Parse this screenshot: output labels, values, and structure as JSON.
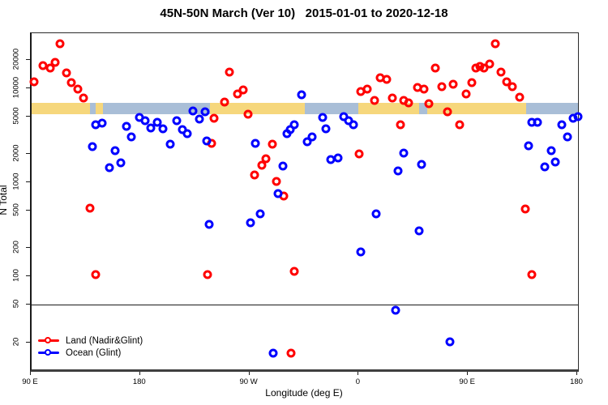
{
  "title": "45N-50N March (Ver 10)   2015-01-01 to 2020-12-18",
  "axes": {
    "x": {
      "label": "Longitude (deg E)",
      "range": [
        90,
        540
      ],
      "ticks": [
        {
          "value": 90,
          "label": "90 E"
        },
        {
          "value": 180,
          "label": "180"
        },
        {
          "value": 270,
          "label": "90 W"
        },
        {
          "value": 360,
          "label": "0"
        },
        {
          "value": 450,
          "label": "90 E"
        },
        {
          "value": 540,
          "label": "180"
        }
      ]
    },
    "y": {
      "label": "N Total",
      "scale": "log",
      "range": [
        10.35,
        38300
      ],
      "ticks": [
        20,
        50,
        100,
        200,
        500,
        1000,
        2000,
        5000,
        10000,
        20000
      ]
    }
  },
  "reference_line": {
    "y": 50
  },
  "colors": {
    "land": "#ff0000",
    "ocean": "#0000ff",
    "band_land": "#f6d77c",
    "band_ocean": "#a9bed7"
  },
  "land_ocean_band": {
    "value_range": [
      5300,
      7000
    ],
    "segments": [
      {
        "type": "land",
        "from": 90,
        "to": 138
      },
      {
        "type": "ocean",
        "from": 138,
        "to": 143
      },
      {
        "type": "land",
        "from": 143,
        "to": 149
      },
      {
        "type": "ocean",
        "from": 149,
        "to": 237
      },
      {
        "type": "land",
        "from": 237,
        "to": 315
      },
      {
        "type": "ocean",
        "from": 315,
        "to": 359
      },
      {
        "type": "land",
        "from": 359,
        "to": 409
      },
      {
        "type": "ocean",
        "from": 409,
        "to": 416
      },
      {
        "type": "land",
        "from": 416,
        "to": 497
      },
      {
        "type": "ocean",
        "from": 497,
        "to": 540
      }
    ]
  },
  "legend": {
    "items": [
      {
        "label": "Land (Nadir&Glint)",
        "color": "#ff0000"
      },
      {
        "label": "Ocean (Glint)",
        "color": "#0000ff"
      }
    ],
    "position": "bottom-left"
  },
  "chart_data": {
    "type": "scatter",
    "title": "45N-50N March (Ver 10)   2015-01-01 to 2020-12-18",
    "xlabel": "Longitude (deg E)",
    "ylabel": "N Total",
    "x_range": [
      90,
      540
    ],
    "y_range_log": [
      10.35,
      38300
    ],
    "series": [
      {
        "name": "Land (Nadir&Glint)",
        "color": "#ff0000",
        "points": [
          [
            91.8,
            11700
          ],
          [
            99.3,
            17200
          ],
          [
            105.2,
            16500
          ],
          [
            109.6,
            18900
          ],
          [
            113.4,
            29400
          ],
          [
            118.5,
            14500
          ],
          [
            122.9,
            11400
          ],
          [
            127.9,
            9700
          ],
          [
            132.7,
            7900
          ],
          [
            137.9,
            530
          ],
          [
            143.0,
            105
          ],
          [
            234.7,
            105
          ],
          [
            238.2,
            2580
          ],
          [
            239.9,
            4800
          ],
          [
            249.1,
            7160
          ],
          [
            252.9,
            14900
          ],
          [
            259.8,
            8630
          ],
          [
            264.3,
            9500
          ],
          [
            268.1,
            5240
          ],
          [
            273.6,
            1200
          ],
          [
            279.8,
            1530
          ],
          [
            283.0,
            1780
          ],
          [
            288.1,
            2530
          ],
          [
            291.8,
            1030
          ],
          [
            297.4,
            710
          ],
          [
            303.6,
            15.3
          ],
          [
            306.3,
            113
          ],
          [
            360.0,
            2000
          ],
          [
            361.3,
            9220
          ],
          [
            366.2,
            9700
          ],
          [
            372.4,
            7470
          ],
          [
            377.1,
            12800
          ],
          [
            382.7,
            12400
          ],
          [
            387.0,
            7900
          ],
          [
            393.7,
            4060
          ],
          [
            396.5,
            7470
          ],
          [
            400.3,
            7000
          ],
          [
            407.8,
            10200
          ],
          [
            413.2,
            9740
          ],
          [
            417.2,
            6820
          ],
          [
            422.7,
            16300
          ],
          [
            427.8,
            10300
          ],
          [
            432.7,
            5630
          ],
          [
            437.2,
            11100
          ],
          [
            442.8,
            4120
          ],
          [
            447.9,
            8740
          ],
          [
            452.4,
            11500
          ],
          [
            456.1,
            16500
          ],
          [
            459.1,
            17100
          ],
          [
            462.8,
            16300
          ],
          [
            467.3,
            17900
          ],
          [
            471.7,
            29400
          ],
          [
            476.8,
            14700
          ],
          [
            481.3,
            11700
          ],
          [
            485.7,
            10300
          ],
          [
            491.7,
            8000
          ],
          [
            496.8,
            525
          ],
          [
            501.8,
            105
          ]
        ]
      },
      {
        "name": "Ocean (Glint)",
        "color": "#0000ff",
        "points": [
          [
            140.1,
            2400
          ],
          [
            142.7,
            4090
          ],
          [
            147.9,
            4230
          ],
          [
            153.9,
            1420
          ],
          [
            159.0,
            2150
          ],
          [
            163.4,
            1620
          ],
          [
            167.9,
            3910
          ],
          [
            172.3,
            3010
          ],
          [
            178.6,
            4850
          ],
          [
            183.5,
            4480
          ],
          [
            188.4,
            3750
          ],
          [
            193.5,
            4320
          ],
          [
            198.4,
            3670
          ],
          [
            204.0,
            2520
          ],
          [
            209.5,
            4530
          ],
          [
            214.2,
            3620
          ],
          [
            218.4,
            3300
          ],
          [
            223.1,
            5710
          ],
          [
            228.0,
            4700
          ],
          [
            233.1,
            5620
          ],
          [
            234.3,
            2760
          ],
          [
            236.4,
            357
          ],
          [
            270.3,
            376
          ],
          [
            274.1,
            2580
          ],
          [
            278.1,
            462
          ],
          [
            288.8,
            15.3
          ],
          [
            293.2,
            760
          ],
          [
            297.0,
            1500
          ],
          [
            300.3,
            3290
          ],
          [
            302.8,
            3600
          ],
          [
            306.3,
            4120
          ],
          [
            312.6,
            8500
          ],
          [
            317.0,
            2720
          ],
          [
            320.8,
            3050
          ],
          [
            329.7,
            4880
          ],
          [
            332.6,
            3670
          ],
          [
            336.6,
            1750
          ],
          [
            342.2,
            1820
          ],
          [
            346.9,
            5010
          ],
          [
            351.3,
            4530
          ],
          [
            355.3,
            4120
          ],
          [
            360.9,
            183
          ],
          [
            373.8,
            465
          ],
          [
            389.8,
            44
          ],
          [
            391.6,
            1320
          ],
          [
            396.7,
            2030
          ],
          [
            409.0,
            304
          ],
          [
            411.2,
            1540
          ],
          [
            434.3,
            20.3
          ],
          [
            499.5,
            2450
          ],
          [
            501.7,
            4320
          ],
          [
            506.6,
            4320
          ],
          [
            512.4,
            1470
          ],
          [
            517.7,
            2180
          ],
          [
            521.3,
            1660
          ],
          [
            526.6,
            4120
          ],
          [
            531.1,
            3010
          ],
          [
            536.2,
            4800
          ],
          [
            540.0,
            4950
          ]
        ]
      }
    ]
  }
}
